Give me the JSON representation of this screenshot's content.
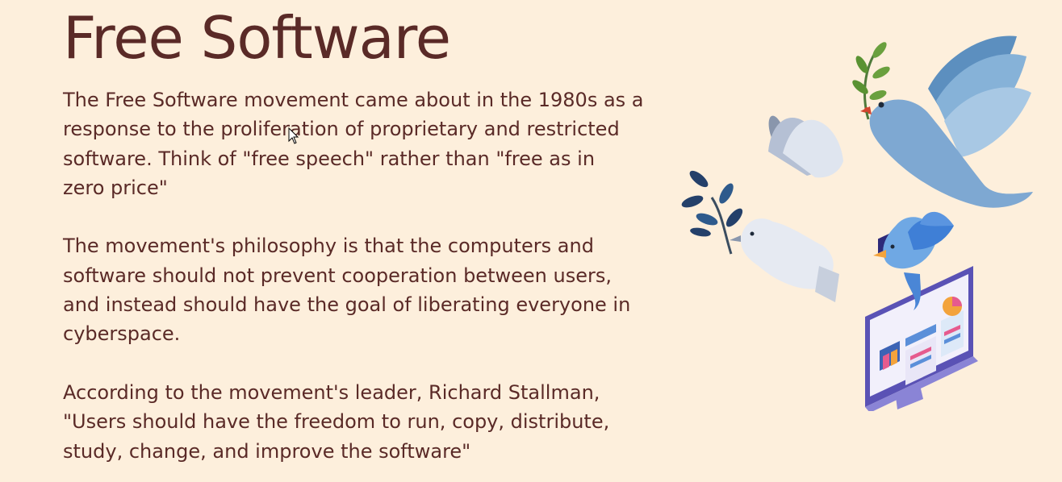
{
  "slide": {
    "title": "Free Software",
    "paragraphs": [
      {
        "lines": [
          "The Free Software movement came about in the 1980s as a",
          "response to the proliferation of proprietary and restricted",
          "software.   Think of \"free speech\" rather than \"free as in",
          "zero price\""
        ]
      },
      {
        "lines": [
          "The movement's philosophy is that the computers and",
          "software should not prevent cooperation between users,",
          "and instead should have the goal of liberating everyone in",
          "cyberspace."
        ]
      },
      {
        "lines": [
          "According to the movement's leader, Richard Stallman,",
          "\"Users should have the freedom to run, copy, distribute,",
          "study, change, and improve the software\""
        ]
      }
    ],
    "illustration_icons": [
      "dove-with-olive-branch-icon",
      "white-dove-icon",
      "bluebird-icon",
      "computer-monitor-icon"
    ],
    "colors": {
      "background": "#fdefdc",
      "text": "#5a2a27",
      "dove_blue": "#7fa9cf",
      "monitor_purple": "#5a52b5"
    }
  }
}
